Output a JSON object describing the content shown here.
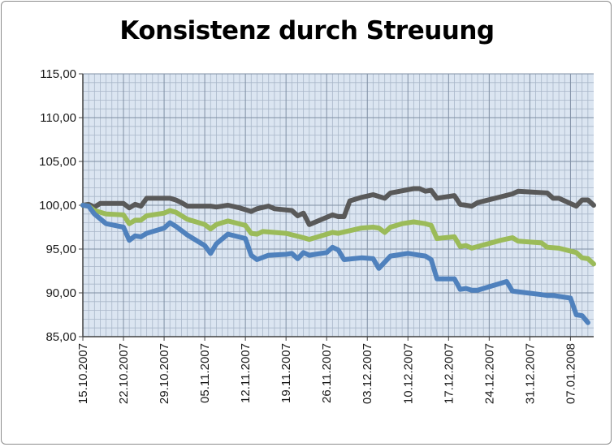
{
  "chart_data": {
    "type": "line",
    "title": "Konsistenz durch Streuung",
    "xlabel": "",
    "ylabel": "",
    "ylim": [
      85,
      115
    ],
    "yticks": [
      "85,00",
      "90,00",
      "95,00",
      "100,00",
      "105,00",
      "110,00",
      "115,00"
    ],
    "xticks": [
      "15.10.2007",
      "22.10.2007",
      "29.10.2007",
      "05.11.2007",
      "12.11.2007",
      "19.11.2007",
      "26.11.2007",
      "03.12.2007",
      "10.12.2007",
      "17.12.2007",
      "24.12.2007",
      "31.12.2007",
      "07.01.2008"
    ],
    "grid": true,
    "legend": "none",
    "x_start": "15.10.2007",
    "series": [
      {
        "color": "#595959",
        "points": [
          [
            0,
            100.0
          ],
          [
            1,
            100.1
          ],
          [
            2,
            99.8
          ],
          [
            3,
            100.2
          ],
          [
            4,
            100.2
          ],
          [
            7,
            100.2
          ],
          [
            8,
            99.7
          ],
          [
            9,
            100.1
          ],
          [
            10,
            99.9
          ],
          [
            11,
            100.8
          ],
          [
            15,
            100.8
          ],
          [
            16,
            100.6
          ],
          [
            17,
            100.3
          ],
          [
            18,
            99.9
          ],
          [
            20,
            99.9
          ],
          [
            22,
            99.9
          ],
          [
            23,
            99.8
          ],
          [
            25,
            100.0
          ],
          [
            27,
            99.7
          ],
          [
            29,
            99.3
          ],
          [
            30,
            99.6
          ],
          [
            32,
            99.9
          ],
          [
            33,
            99.6
          ],
          [
            36,
            99.4
          ],
          [
            37,
            98.8
          ],
          [
            38,
            99.1
          ],
          [
            39,
            97.8
          ],
          [
            43,
            98.9
          ],
          [
            44,
            98.7
          ],
          [
            45,
            98.7
          ],
          [
            46,
            100.5
          ],
          [
            48,
            100.9
          ],
          [
            50,
            101.2
          ],
          [
            52,
            100.8
          ],
          [
            53,
            101.4
          ],
          [
            57,
            101.9
          ],
          [
            58,
            101.9
          ],
          [
            59,
            101.6
          ],
          [
            60,
            101.7
          ],
          [
            61,
            100.8
          ],
          [
            63,
            101.0
          ],
          [
            64,
            101.1
          ],
          [
            65,
            100.1
          ],
          [
            67,
            99.9
          ],
          [
            68,
            100.3
          ],
          [
            74,
            101.3
          ],
          [
            75,
            101.6
          ],
          [
            80,
            101.4
          ],
          [
            81,
            100.8
          ],
          [
            82,
            100.8
          ],
          [
            85,
            99.9
          ],
          [
            86,
            100.6
          ],
          [
            87,
            100.6
          ],
          [
            88,
            100.0
          ]
        ]
      },
      {
        "color": "#9bbb59",
        "points": [
          [
            0,
            100.0
          ],
          [
            1,
            99.9
          ],
          [
            2,
            99.4
          ],
          [
            4,
            99.0
          ],
          [
            7,
            98.9
          ],
          [
            8,
            97.9
          ],
          [
            9,
            98.3
          ],
          [
            10,
            98.3
          ],
          [
            11,
            98.8
          ],
          [
            14,
            99.1
          ],
          [
            15,
            99.4
          ],
          [
            16,
            99.2
          ],
          [
            18,
            98.4
          ],
          [
            21,
            97.8
          ],
          [
            22,
            97.3
          ],
          [
            23,
            97.8
          ],
          [
            25,
            98.2
          ],
          [
            28,
            97.7
          ],
          [
            29,
            96.8
          ],
          [
            30,
            96.7
          ],
          [
            31,
            97.0
          ],
          [
            35,
            96.8
          ],
          [
            38,
            96.3
          ],
          [
            39,
            96.1
          ],
          [
            40,
            96.3
          ],
          [
            43,
            96.9
          ],
          [
            44,
            96.8
          ],
          [
            46,
            97.1
          ],
          [
            48,
            97.4
          ],
          [
            50,
            97.5
          ],
          [
            51,
            97.4
          ],
          [
            52,
            96.9
          ],
          [
            53,
            97.5
          ],
          [
            55,
            97.9
          ],
          [
            57,
            98.1
          ],
          [
            59,
            97.9
          ],
          [
            60,
            97.7
          ],
          [
            61,
            96.2
          ],
          [
            64,
            96.4
          ],
          [
            65,
            95.3
          ],
          [
            66,
            95.4
          ],
          [
            67,
            95.1
          ],
          [
            72,
            96.0
          ],
          [
            74,
            96.3
          ],
          [
            75,
            95.9
          ],
          [
            79,
            95.7
          ],
          [
            80,
            95.2
          ],
          [
            82,
            95.1
          ],
          [
            85,
            94.6
          ],
          [
            86,
            94.0
          ],
          [
            87,
            93.9
          ],
          [
            88,
            93.3
          ]
        ]
      },
      {
        "color": "#4f81bd",
        "points": [
          [
            0,
            100.0
          ],
          [
            1,
            99.9
          ],
          [
            2,
            99.0
          ],
          [
            4,
            97.9
          ],
          [
            7,
            97.5
          ],
          [
            8,
            96.0
          ],
          [
            9,
            96.5
          ],
          [
            10,
            96.4
          ],
          [
            11,
            96.8
          ],
          [
            14,
            97.4
          ],
          [
            15,
            98.0
          ],
          [
            16,
            97.6
          ],
          [
            18,
            96.6
          ],
          [
            21,
            95.4
          ],
          [
            22,
            94.5
          ],
          [
            23,
            95.6
          ],
          [
            25,
            96.7
          ],
          [
            28,
            96.2
          ],
          [
            29,
            94.3
          ],
          [
            30,
            93.8
          ],
          [
            32,
            94.3
          ],
          [
            35,
            94.4
          ],
          [
            36,
            94.5
          ],
          [
            37,
            93.9
          ],
          [
            38,
            94.6
          ],
          [
            39,
            94.3
          ],
          [
            42,
            94.6
          ],
          [
            43,
            95.2
          ],
          [
            44,
            94.9
          ],
          [
            45,
            93.8
          ],
          [
            48,
            94.0
          ],
          [
            50,
            93.9
          ],
          [
            51,
            92.8
          ],
          [
            53,
            94.2
          ],
          [
            56,
            94.5
          ],
          [
            59,
            94.2
          ],
          [
            60,
            93.8
          ],
          [
            61,
            91.6
          ],
          [
            64,
            91.6
          ],
          [
            65,
            90.4
          ],
          [
            66,
            90.5
          ],
          [
            67,
            90.3
          ],
          [
            68,
            90.3
          ],
          [
            73,
            91.3
          ],
          [
            74,
            90.2
          ],
          [
            79,
            89.8
          ],
          [
            80,
            89.7
          ],
          [
            81,
            89.7
          ],
          [
            84,
            89.4
          ],
          [
            85,
            87.5
          ],
          [
            86,
            87.4
          ],
          [
            87,
            86.6
          ]
        ]
      }
    ]
  }
}
